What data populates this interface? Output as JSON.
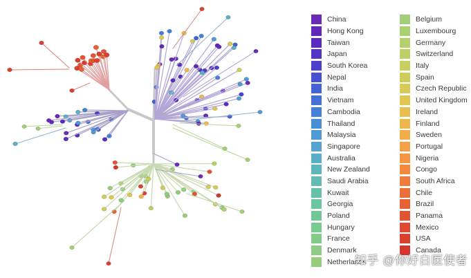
{
  "legend": {
    "col1": [
      {
        "label": "China",
        "color": "#6a2ab8"
      },
      {
        "label": "Hong Kong",
        "color": "#6227bd"
      },
      {
        "label": "Taiwan",
        "color": "#5a2bc2"
      },
      {
        "label": "Japan",
        "color": "#5235c6"
      },
      {
        "label": "South Korea",
        "color": "#4b40cb"
      },
      {
        "label": "Nepal",
        "color": "#4650d2"
      },
      {
        "label": "India",
        "color": "#4262d6"
      },
      {
        "label": "Vietnam",
        "color": "#4271d8"
      },
      {
        "label": "Cambodia",
        "color": "#4580d8"
      },
      {
        "label": "Thailand",
        "color": "#4a8ed7"
      },
      {
        "label": "Malaysia",
        "color": "#509ad3"
      },
      {
        "label": "Singapore",
        "color": "#56a4cd"
      },
      {
        "label": "Australia",
        "color": "#5aaec6"
      },
      {
        "label": "New Zealand",
        "color": "#5eb6bd"
      },
      {
        "label": "Saudi Arabia",
        "color": "#62bcb3"
      },
      {
        "label": "Kuwait",
        "color": "#67c0a9"
      },
      {
        "label": "Georgia",
        "color": "#6cc4a0"
      },
      {
        "label": "Poland",
        "color": "#72c798"
      },
      {
        "label": "Hungary",
        "color": "#7ac990"
      },
      {
        "label": "France",
        "color": "#83cb89"
      },
      {
        "label": "Denmark",
        "color": "#8ccc83"
      },
      {
        "label": "Netherlands",
        "color": "#95cd7d"
      }
    ],
    "col2": [
      {
        "label": "Belgium",
        "color": "#a0cf78"
      },
      {
        "label": "Luxembourg",
        "color": "#aad073"
      },
      {
        "label": "Germany",
        "color": "#b4d06d"
      },
      {
        "label": "Switzerland",
        "color": "#bdd066"
      },
      {
        "label": "Italy",
        "color": "#c6cf60"
      },
      {
        "label": "Spain",
        "color": "#cfcd5a"
      },
      {
        "label": "Czech Republic",
        "color": "#d8ca55"
      },
      {
        "label": "United Kingdom",
        "color": "#e0c551"
      },
      {
        "label": "Ireland",
        "color": "#e8bf4e"
      },
      {
        "label": "Finland",
        "color": "#eeb74b"
      },
      {
        "label": "Sweden",
        "color": "#f2ad48"
      },
      {
        "label": "Portugal",
        "color": "#f4a245"
      },
      {
        "label": "Nigeria",
        "color": "#f49642"
      },
      {
        "label": "Congo",
        "color": "#f3893f"
      },
      {
        "label": "South Africa",
        "color": "#f07b3b"
      },
      {
        "label": "Chile",
        "color": "#ec6e38"
      },
      {
        "label": "Brazil",
        "color": "#e86135"
      },
      {
        "label": "Panama",
        "color": "#e35532"
      },
      {
        "label": "Mexico",
        "color": "#df4a30"
      },
      {
        "label": "USA",
        "color": "#db3f2e"
      },
      {
        "label": "Canada",
        "color": "#d6352c"
      }
    ]
  },
  "watermark": "知乎 @你好白医使者"
}
